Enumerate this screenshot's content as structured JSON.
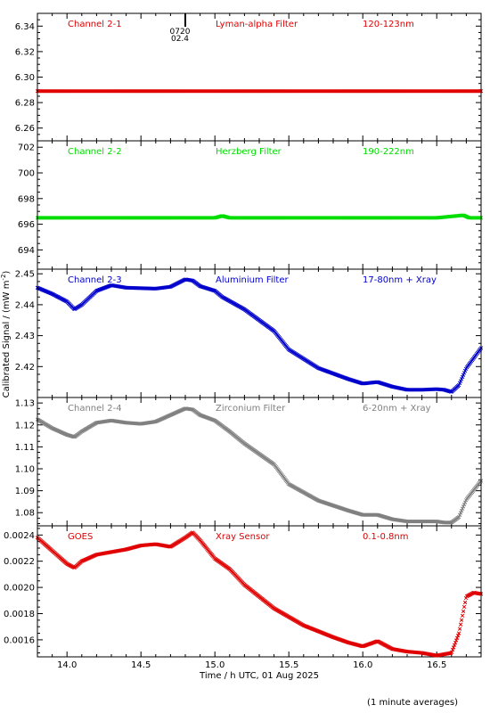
{
  "figure": {
    "ylabel": "Calibrated Signal / (mW m",
    "ylabel_sup": "-2",
    "ylabel_close": ")",
    "xlabel": "Time / h UTC, 01 Aug 2025",
    "footnote": "(1 minute averages)",
    "marker_text_1": "0720",
    "marker_text_2": "02.4"
  },
  "chart_data": [
    {
      "type": "scatter",
      "channel": "Channel 2-1",
      "filter": "Lyman-alpha Filter",
      "band": "120-123nm",
      "color": "#e00000",
      "xlim": [
        13.8,
        16.8
      ],
      "ylim": [
        6.25,
        6.35
      ],
      "yticks": [
        "6.26",
        "6.28",
        "6.30",
        "6.32",
        "6.34"
      ],
      "x": [
        13.8,
        14.3,
        14.8,
        15.3,
        15.8,
        16.3,
        16.8
      ],
      "y": [
        6.289,
        6.289,
        6.289,
        6.289,
        6.289,
        6.289,
        6.289
      ]
    },
    {
      "type": "scatter",
      "channel": "Channel 2-2",
      "filter": "Herzberg Filter",
      "band": "190-222nm",
      "color": "#00dd00",
      "xlim": [
        13.8,
        16.8
      ],
      "ylim": [
        692.5,
        702.5
      ],
      "yticks": [
        "694",
        "696",
        "698",
        "700",
        "702"
      ],
      "x": [
        13.8,
        14.3,
        14.8,
        15.0,
        15.05,
        15.1,
        15.5,
        16.0,
        16.5,
        16.68,
        16.72,
        16.8
      ],
      "y": [
        696.5,
        696.5,
        696.5,
        696.5,
        696.65,
        696.5,
        696.5,
        696.5,
        696.5,
        696.7,
        696.5,
        696.5
      ]
    },
    {
      "type": "scatter",
      "channel": "Channel 2-3",
      "filter": "Aluminium Filter",
      "band": "17-80nm + Xray",
      "color": "#0000cc",
      "xlim": [
        13.8,
        16.8
      ],
      "ylim": [
        2.41,
        2.4515
      ],
      "yticks": [
        "2.42",
        "2.43",
        "2.44",
        "2.45"
      ],
      "x": [
        13.8,
        13.9,
        14.0,
        14.05,
        14.1,
        14.2,
        14.3,
        14.4,
        14.6,
        14.7,
        14.8,
        14.85,
        14.9,
        15.0,
        15.05,
        15.2,
        15.4,
        15.5,
        15.7,
        15.9,
        16.0,
        16.1,
        16.2,
        16.3,
        16.4,
        16.5,
        16.55,
        16.6,
        16.65,
        16.7,
        16.8
      ],
      "y": [
        2.4455,
        2.4435,
        2.441,
        2.4385,
        2.44,
        2.4445,
        2.4463,
        2.4455,
        2.4452,
        2.4458,
        2.4482,
        2.4478,
        2.446,
        2.4445,
        2.4425,
        2.4385,
        2.4315,
        2.4255,
        2.4195,
        2.416,
        2.4145,
        2.415,
        2.4135,
        2.4125,
        2.4125,
        2.4127,
        2.4125,
        2.4118,
        2.414,
        2.4195,
        2.426
      ]
    },
    {
      "type": "scatter",
      "channel": "Channel 2-4",
      "filter": "Zirconium Filter",
      "band": "6-20nm + Xray",
      "color": "#808080",
      "xlim": [
        13.8,
        16.8
      ],
      "ylim": [
        1.074,
        1.1325
      ],
      "yticks": [
        "1.08",
        "1.09",
        "1.10",
        "1.11",
        "1.12",
        "1.13"
      ],
      "x": [
        13.8,
        13.9,
        14.0,
        14.05,
        14.1,
        14.2,
        14.3,
        14.4,
        14.5,
        14.6,
        14.7,
        14.8,
        14.85,
        14.9,
        15.0,
        15.1,
        15.2,
        15.4,
        15.5,
        15.7,
        15.9,
        16.0,
        16.1,
        16.2,
        16.3,
        16.4,
        16.5,
        16.55,
        16.6,
        16.65,
        16.7,
        16.8
      ],
      "y": [
        1.1225,
        1.1185,
        1.1155,
        1.1145,
        1.117,
        1.121,
        1.122,
        1.121,
        1.1205,
        1.1215,
        1.1245,
        1.1275,
        1.127,
        1.1245,
        1.122,
        1.117,
        1.1115,
        1.102,
        1.093,
        1.0855,
        1.081,
        1.079,
        1.079,
        1.077,
        1.076,
        1.076,
        1.076,
        1.0755,
        1.0755,
        1.078,
        1.086,
        1.0945
      ]
    },
    {
      "type": "scatter",
      "channel": "GOES",
      "filter": "Xray Sensor",
      "band": "0.1-0.8nm",
      "color": "#e00000",
      "xlim": [
        13.8,
        16.8
      ],
      "ylim": [
        0.00147,
        0.00247
      ],
      "yticks": [
        "0.0016",
        "0.0018",
        "0.0020",
        "0.0022",
        "0.0024"
      ],
      "xticks": [
        "14.0",
        "14.5",
        "15.0",
        "15.5",
        "16.0",
        "16.5"
      ],
      "x": [
        13.8,
        13.9,
        14.0,
        14.05,
        14.1,
        14.2,
        14.3,
        14.4,
        14.5,
        14.6,
        14.7,
        14.8,
        14.85,
        14.9,
        15.0,
        15.1,
        15.2,
        15.4,
        15.6,
        15.8,
        15.9,
        16.0,
        16.05,
        16.1,
        16.2,
        16.3,
        16.4,
        16.5,
        16.55,
        16.6,
        16.65,
        16.7,
        16.75,
        16.8
      ],
      "y": [
        0.00238,
        0.00228,
        0.00218,
        0.00215,
        0.0022,
        0.00225,
        0.00227,
        0.00229,
        0.00232,
        0.00233,
        0.00231,
        0.00238,
        0.00242,
        0.00236,
        0.00222,
        0.00214,
        0.00202,
        0.00184,
        0.00171,
        0.00162,
        0.00158,
        0.00155,
        0.00157,
        0.00159,
        0.00153,
        0.00151,
        0.0015,
        0.00148,
        0.00149,
        0.0015,
        0.00165,
        0.00193,
        0.00196,
        0.00195
      ]
    }
  ]
}
